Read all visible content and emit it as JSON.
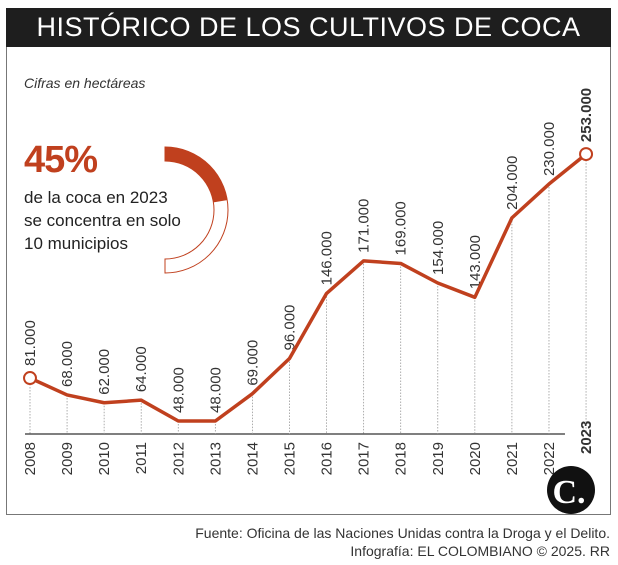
{
  "title": "HISTÓRICO DE LOS CULTIVOS DE COCA",
  "subtitle": "Cifras en hectáreas",
  "highlight": {
    "percent_label": "45%",
    "percent_value": 45,
    "lines": [
      "de la coca en 2023",
      "se concentra en solo",
      "10 municipios"
    ]
  },
  "footer": {
    "source": "Fuente: Oficina de las Naciones Unidas contra la Droga y el Delito.",
    "credit": "Infografía: EL COLOMBIANO © 2025. RR"
  },
  "logo": "C.",
  "colors": {
    "accent": "#c0401e",
    "title_bg": "#1e1e1e"
  },
  "chart_data": {
    "type": "line",
    "title": "HISTÓRICO DE LOS CULTIVOS DE COCA",
    "subtitle": "Cifras en hectáreas",
    "categories": [
      "2008",
      "2009",
      "2010",
      "2011",
      "2012",
      "2013",
      "2014",
      "2015",
      "2016",
      "2017",
      "2018",
      "2019",
      "2020",
      "2021",
      "2022",
      "2023"
    ],
    "values": [
      81000,
      68000,
      62000,
      64000,
      48000,
      48000,
      69000,
      96000,
      146000,
      171000,
      169000,
      154000,
      143000,
      204000,
      230000,
      253000
    ],
    "labels": [
      "81.000",
      "68.000",
      "62.000",
      "64.000",
      "48.000",
      "48.000",
      "69.000",
      "96.000",
      "146.000",
      "171.000",
      "169.000",
      "154.000",
      "143.000",
      "204.000",
      "230.000",
      "253.000"
    ],
    "grid": false
  }
}
